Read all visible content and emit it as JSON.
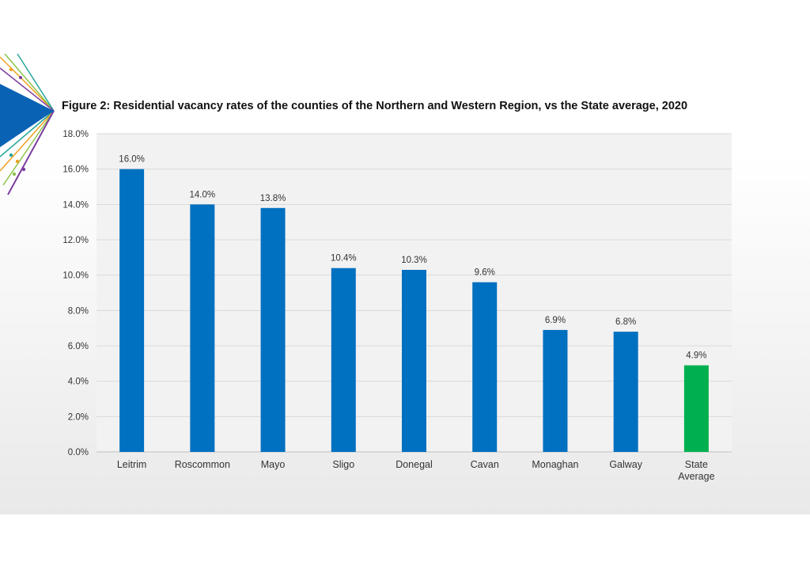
{
  "chart_data": {
    "type": "bar",
    "title": "Figure 2: Residential vacancy rates of the counties of the Northern and Western Region, vs the State average, 2020",
    "xlabel": "",
    "ylabel": "",
    "categories": [
      "Leitrim",
      "Roscommon",
      "Mayo",
      "Sligo",
      "Donegal",
      "Cavan",
      "Monaghan",
      "Galway",
      "State Average"
    ],
    "values": [
      16.0,
      14.0,
      13.8,
      10.4,
      10.3,
      9.6,
      6.9,
      6.8,
      4.9
    ],
    "data_labels": [
      "16.0%",
      "14.0%",
      "13.8%",
      "10.4%",
      "10.3%",
      "9.6%",
      "6.9%",
      "6.8%",
      "4.9%"
    ],
    "ylim": [
      0,
      18
    ],
    "yticks": [
      0,
      2,
      4,
      6,
      8,
      10,
      12,
      14,
      16,
      18
    ],
    "ytick_labels": [
      "0.0%",
      "2.0%",
      "4.0%",
      "6.0%",
      "8.0%",
      "10.0%",
      "12.0%",
      "14.0%",
      "16.0%",
      "18.0%"
    ],
    "grid": true,
    "legend": "none",
    "colors": {
      "bar": "#0070c0",
      "highlight_bar": "#00b050",
      "grid": "#d9d9d9",
      "plot_background": "#f2f2f2"
    },
    "highlight_index": 8
  }
}
